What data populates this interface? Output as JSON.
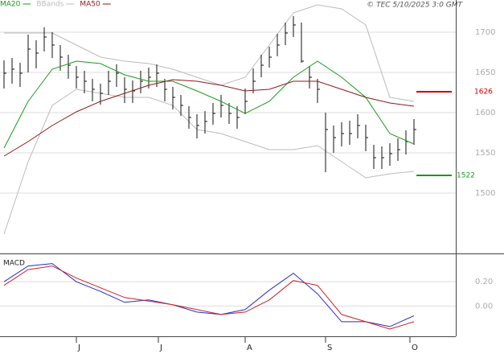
{
  "chart_data": [
    {
      "type": "ohlc",
      "credit": "© TEC 5/10/2025 3:0 GMT",
      "xlim": [
        -0.5,
        56.2
      ],
      "ylim": [
        1425,
        1740
      ],
      "yticks": [
        1500,
        1550,
        1600,
        1650,
        1700
      ],
      "grid": true,
      "bar_color": "#111111",
      "close": [
        1649,
        1654,
        1649,
        1679,
        1674,
        1694,
        1684,
        1669,
        1659,
        1644,
        1639,
        1629,
        1624,
        1639,
        1649,
        1629,
        1627,
        1639,
        1644,
        1649,
        1629,
        1619,
        1609,
        1594,
        1584,
        1589,
        1599,
        1609,
        1599,
        1594,
        1614,
        1639,
        1659,
        1669,
        1684,
        1699,
        1709,
        1664,
        1644,
        1629,
        1579,
        1569,
        1574,
        1574,
        1584,
        1569,
        1544,
        1544,
        1549,
        1554,
        1564,
        1579
      ],
      "high": [
        1665,
        1668,
        1662,
        1697,
        1690,
        1706,
        1700,
        1684,
        1672,
        1658,
        1652,
        1642,
        1636,
        1652,
        1660,
        1644,
        1640,
        1652,
        1656,
        1660,
        1642,
        1632,
        1622,
        1608,
        1598,
        1602,
        1612,
        1622,
        1612,
        1608,
        1630,
        1655,
        1672,
        1682,
        1698,
        1712,
        1720,
        1712,
        1658,
        1642,
        1600,
        1584,
        1588,
        1590,
        1598,
        1585,
        1560,
        1558,
        1562,
        1568,
        1578,
        1592
      ],
      "low": [
        1630,
        1636,
        1632,
        1650,
        1655,
        1676,
        1668,
        1652,
        1642,
        1630,
        1624,
        1614,
        1610,
        1622,
        1632,
        1612,
        1612,
        1624,
        1630,
        1632,
        1614,
        1604,
        1596,
        1580,
        1568,
        1574,
        1585,
        1594,
        1586,
        1580,
        1598,
        1624,
        1644,
        1656,
        1670,
        1684,
        1694,
        1662,
        1630,
        1612,
        1526,
        1550,
        1558,
        1560,
        1568,
        1552,
        1530,
        1530,
        1534,
        1540,
        1548,
        1560
      ],
      "series": [
        {
          "name": "MA20",
          "color": "#1a9a1a",
          "x": [
            0,
            3,
            6,
            9,
            12,
            15,
            18,
            21,
            24,
            27,
            30,
            33,
            36,
            39,
            42,
            45,
            48,
            51
          ],
          "values": [
            1556,
            1614,
            1654,
            1664,
            1661,
            1647,
            1639,
            1639,
            1627,
            1614,
            1599,
            1614,
            1644,
            1664,
            1644,
            1619,
            1574,
            1561
          ]
        },
        {
          "name": "BBands",
          "color": "#bbbbbb",
          "x": [
            0,
            3,
            6,
            9,
            12,
            15,
            18,
            21,
            24,
            27,
            30,
            33,
            36,
            39,
            42,
            45,
            48,
            51
          ],
          "upper": [
            1699,
            1699,
            1699,
            1684,
            1669,
            1664,
            1661,
            1654,
            1644,
            1634,
            1644,
            1684,
            1724,
            1734,
            1729,
            1709,
            1619,
            1614
          ],
          "lower": [
            1449,
            1539,
            1609,
            1629,
            1624,
            1619,
            1619,
            1609,
            1579,
            1574,
            1564,
            1554,
            1554,
            1559,
            1539,
            1519,
            1524,
            1527
          ]
        },
        {
          "name": "MA50",
          "color": "#8b1a1a",
          "x": [
            0,
            3,
            6,
            9,
            12,
            15,
            18,
            21,
            24,
            27,
            30,
            33,
            36,
            39,
            42,
            45,
            48,
            51
          ],
          "values": [
            1546,
            1564,
            1584,
            1601,
            1614,
            1624,
            1634,
            1641,
            1639,
            1634,
            1627,
            1629,
            1639,
            1639,
            1629,
            1619,
            1612,
            1608
          ]
        }
      ],
      "annotations": [
        {
          "value": 1626,
          "color": "#cc0000"
        },
        {
          "value": 1522,
          "color": "#1a9a1a"
        }
      ]
    },
    {
      "type": "line",
      "title": "MACD",
      "xlim": [
        -0.5,
        56.2
      ],
      "ylim": [
        -0.25,
        0.42
      ],
      "yticks": [
        {
          "value": 0.2,
          "label": "0.20"
        },
        {
          "value": 0,
          "label": "0.00"
        }
      ],
      "xticks": [
        {
          "value": 9,
          "label": "J"
        },
        {
          "value": 19.2,
          "label": "J"
        },
        {
          "value": 30,
          "label": "A"
        },
        {
          "value": 40,
          "label": "S"
        },
        {
          "value": 50.5,
          "label": "O"
        }
      ],
      "series": [
        {
          "color": "#2a2ac8",
          "x": [
            0,
            3,
            6,
            9,
            12,
            15,
            18,
            21,
            24,
            27,
            30,
            33,
            36,
            39,
            42,
            45,
            48,
            51
          ],
          "values": [
            0.2,
            0.33,
            0.35,
            0.2,
            0.12,
            0.03,
            0.05,
            0.01,
            -0.05,
            -0.07,
            -0.03,
            0.13,
            0.27,
            0.1,
            -0.13,
            -0.13,
            -0.17,
            -0.08
          ]
        },
        {
          "color": "#cc2222",
          "x": [
            0,
            3,
            6,
            9,
            12,
            15,
            18,
            21,
            24,
            27,
            30,
            33,
            36,
            39,
            42,
            45,
            48,
            51
          ],
          "values": [
            0.17,
            0.3,
            0.33,
            0.23,
            0.15,
            0.07,
            0.04,
            0.01,
            -0.03,
            -0.07,
            -0.05,
            0.05,
            0.21,
            0.17,
            -0.07,
            -0.13,
            -0.19,
            -0.13
          ]
        }
      ]
    }
  ]
}
